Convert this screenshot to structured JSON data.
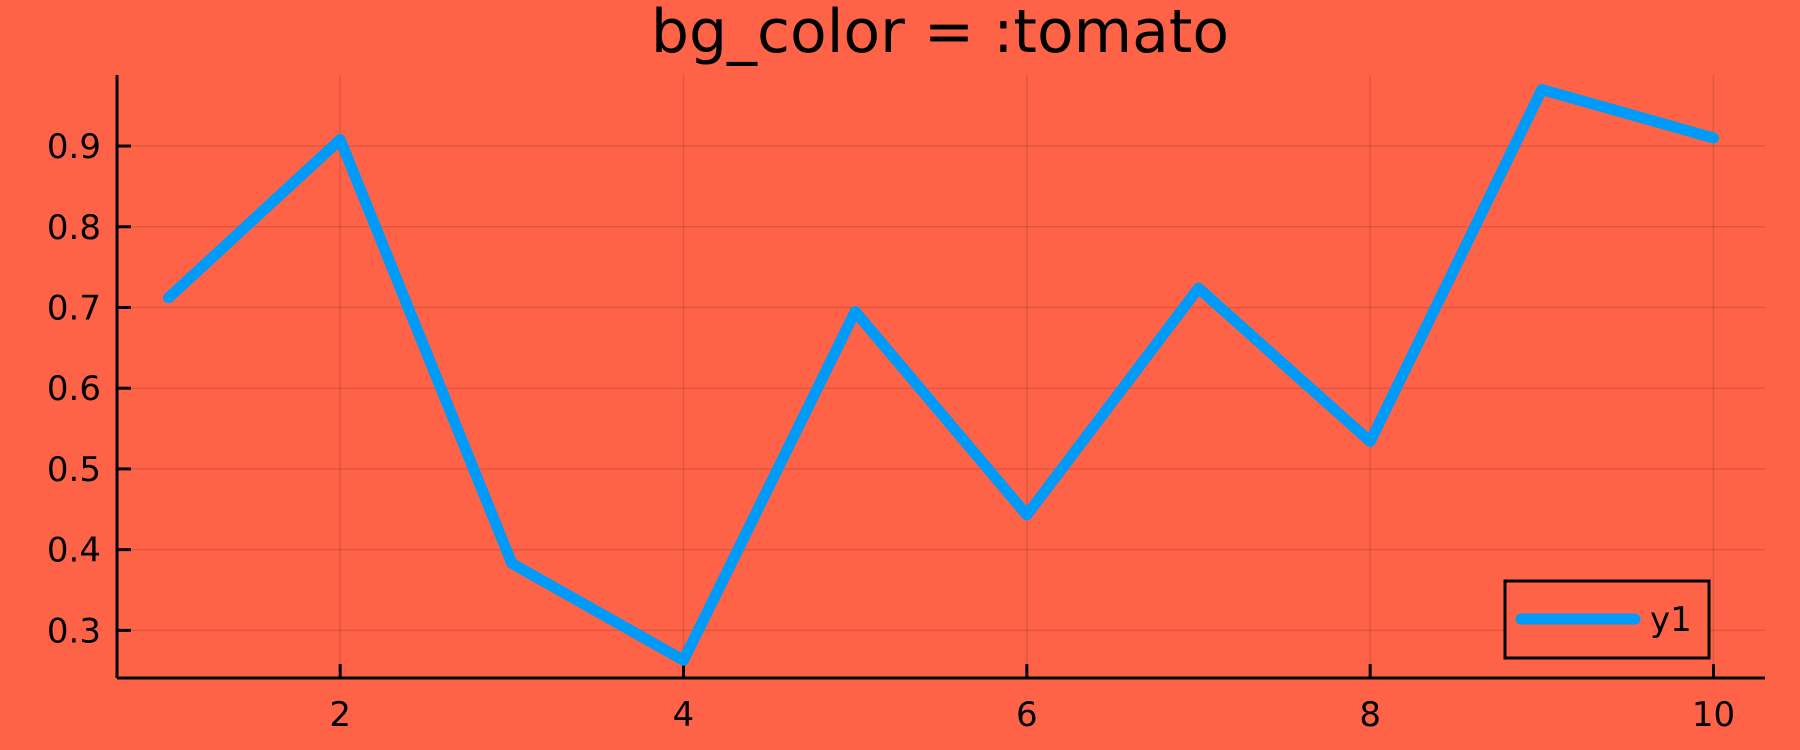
{
  "colors": {
    "background": "#ff6347",
    "series_line": "#009af9",
    "axis": "#000000",
    "grid": "#000000"
  },
  "chart_data": {
    "type": "line",
    "title": "bg_color = :tomato",
    "xlabel": "",
    "ylabel": "",
    "xlim": [
      0.7,
      10.3
    ],
    "ylim": [
      0.241,
      0.988
    ],
    "x_ticks": [
      2,
      4,
      6,
      8,
      10
    ],
    "x_tick_labels": [
      "2",
      "4",
      "6",
      "8",
      "10"
    ],
    "y_ticks": [
      0.3,
      0.4,
      0.5,
      0.6,
      0.7,
      0.8,
      0.9
    ],
    "y_tick_labels": [
      "0.3",
      "0.4",
      "0.5",
      "0.6",
      "0.7",
      "0.8",
      "0.9"
    ],
    "grid": true,
    "legend_position": "bottom-right",
    "series": [
      {
        "name": "y1",
        "x": [
          1,
          2,
          3,
          4,
          5,
          6,
          7,
          8,
          9,
          10
        ],
        "y": [
          0.712,
          0.908,
          0.383,
          0.263,
          0.695,
          0.443,
          0.724,
          0.534,
          0.97,
          0.91
        ]
      }
    ]
  }
}
